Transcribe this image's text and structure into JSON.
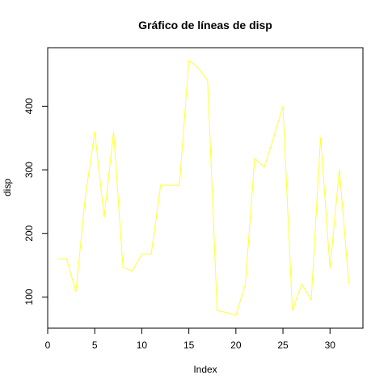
{
  "chart_data": {
    "type": "line",
    "title": "Gráfico de líneas de  disp",
    "xlabel": "Index",
    "ylabel": "disp",
    "x": [
      1,
      2,
      3,
      4,
      5,
      6,
      7,
      8,
      9,
      10,
      11,
      12,
      13,
      14,
      15,
      16,
      17,
      18,
      19,
      20,
      21,
      22,
      23,
      24,
      25,
      26,
      27,
      28,
      29,
      30,
      31,
      32
    ],
    "series": [
      {
        "values": [
          160,
          160,
          108,
          258,
          360,
          225,
          360,
          146.7,
          140.8,
          167.6,
          167.6,
          275.8,
          275.8,
          275.8,
          472,
          460,
          440,
          78.7,
          75.7,
          71.1,
          120.1,
          318,
          304,
          350,
          400,
          79,
          120.3,
          95.1,
          351,
          145,
          301,
          121
        ],
        "color": "#ffff33"
      }
    ],
    "xlim": [
      0,
      33.5
    ],
    "ylim": [
      51,
      492
    ],
    "xticks": [
      0,
      5,
      10,
      15,
      20,
      25,
      30
    ],
    "yticks": [
      100,
      200,
      300,
      400
    ],
    "grid": false,
    "legend": "none"
  }
}
